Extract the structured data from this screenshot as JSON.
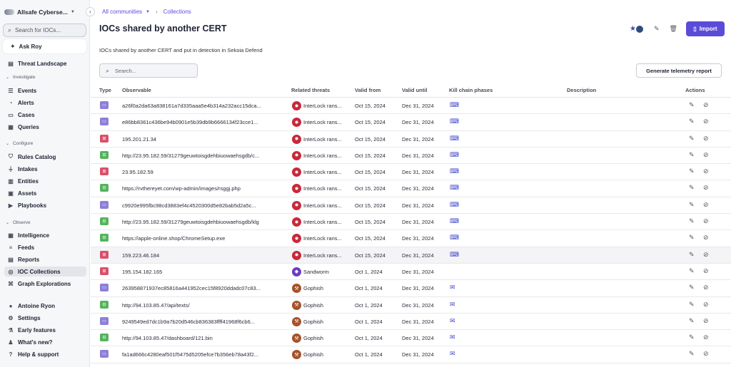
{
  "sidebar": {
    "org_name": "Allsafe Cyberse...",
    "collapse_icon": "chevron-left-icon",
    "search_placeholder": "Search for IOCs...",
    "ask_roy": "Ask Roy",
    "threat_landscape": "Threat Landscape",
    "sections": {
      "investigate": "Investigate",
      "configure": "Configure",
      "observe": "Observe"
    },
    "investigate_items": [
      "Events",
      "Alerts",
      "Cases",
      "Queries"
    ],
    "configure_items": [
      "Rules Catalog",
      "Intakes",
      "Entities",
      "Assets",
      "Playbooks"
    ],
    "observe_items": [
      "Intelligence",
      "Feeds",
      "Reports",
      "IOC Collections",
      "Graph Explorations"
    ],
    "bottom_items": [
      "Antoine Ryon",
      "Settings",
      "Early features",
      "What's new?",
      "Help & support"
    ]
  },
  "breadcrumb": {
    "root": "All communities",
    "current": "Collections"
  },
  "page": {
    "title": "IOCs shared by another CERT",
    "description": "IOCs shared by another CERT and put in detection in Sekoia Defend",
    "import_label": "Import",
    "search_placeholder": "Search...",
    "telemetry_label": "Generate telemetry report"
  },
  "table": {
    "columns": [
      "Type",
      "Observable",
      "Related threats",
      "Valid from",
      "Valid until",
      "Kill chain phases",
      "Description",
      "Actions"
    ],
    "rows": [
      {
        "type": "file",
        "observable": "a26f0a2da63a838161a7d335aaa5e4b314a232acc15dca...",
        "threat": "InterLock rans...",
        "threat_kind": "ransomware",
        "valid_from": "Oct 15, 2024",
        "valid_until": "Dec 31, 2024",
        "kill_chain": "installation"
      },
      {
        "type": "file",
        "observable": "e86bb8361c436be94b0901e5b39db9b6666134f23cce1...",
        "threat": "InterLock rans...",
        "threat_kind": "ransomware",
        "valid_from": "Oct 15, 2024",
        "valid_until": "Dec 31, 2024",
        "kill_chain": "installation"
      },
      {
        "type": "ip",
        "observable": "195.201.21.34",
        "threat": "InterLock rans...",
        "threat_kind": "ransomware",
        "valid_from": "Oct 15, 2024",
        "valid_until": "Dec 31, 2024",
        "kill_chain": "installation"
      },
      {
        "type": "url",
        "observable": "http://23.95.182.59/31279geuwtoisgdehbiuowaehsgdb/c...",
        "threat": "InterLock rans...",
        "threat_kind": "ransomware",
        "valid_from": "Oct 15, 2024",
        "valid_until": "Dec 31, 2024",
        "kill_chain": "installation"
      },
      {
        "type": "ip",
        "observable": "23.95.182.59",
        "threat": "InterLock rans...",
        "threat_kind": "ransomware",
        "valid_from": "Oct 15, 2024",
        "valid_until": "Dec 31, 2024",
        "kill_chain": "installation"
      },
      {
        "type": "url",
        "observable": "https://rvthereyet.com/wp-admin/images/rsggj.php",
        "threat": "InterLock rans...",
        "threat_kind": "ransomware",
        "valid_from": "Oct 15, 2024",
        "valid_until": "Dec 31, 2024",
        "kill_chain": "installation"
      },
      {
        "type": "file",
        "observable": "c9920e995fbc98cd3883ef4c4520300d5e82bab5d2a5c...",
        "threat": "InterLock rans...",
        "threat_kind": "ransomware",
        "valid_from": "Oct 15, 2024",
        "valid_until": "Dec 31, 2024",
        "kill_chain": "installation"
      },
      {
        "type": "url",
        "observable": "http://23.95.182.59/31279geuwtoisgdehbiuowaehsgdb/klg",
        "threat": "InterLock rans...",
        "threat_kind": "ransomware",
        "valid_from": "Oct 15, 2024",
        "valid_until": "Dec 31, 2024",
        "kill_chain": "installation"
      },
      {
        "type": "url",
        "observable": "https://apple-online.shop/ChromeSetup.exe",
        "threat": "InterLock rans...",
        "threat_kind": "ransomware",
        "valid_from": "Oct 15, 2024",
        "valid_until": "Dec 31, 2024",
        "kill_chain": "installation"
      },
      {
        "type": "ip",
        "observable": "159.223.46.184",
        "threat": "InterLock rans...",
        "threat_kind": "ransomware",
        "valid_from": "Oct 15, 2024",
        "valid_until": "Dec 31, 2024",
        "kill_chain": "installation",
        "highlight": true
      },
      {
        "type": "ip",
        "observable": "195.154.182.165",
        "threat": "Sandworm",
        "threat_kind": "actor",
        "valid_from": "Oct 1, 2024",
        "valid_until": "Dec 31, 2024",
        "kill_chain": ""
      },
      {
        "type": "file",
        "observable": "263958871937ec85816a441952cec15f8920ddadc07c83...",
        "threat": "Gophish",
        "threat_kind": "tool",
        "valid_from": "Oct 1, 2024",
        "valid_until": "Dec 31, 2024",
        "kill_chain": "delivery"
      },
      {
        "type": "url",
        "observable": "http://94.103.85.47/api/texts/",
        "threat": "Gophish",
        "threat_kind": "tool",
        "valid_from": "Oct 1, 2024",
        "valid_until": "Dec 31, 2024",
        "kill_chain": "delivery"
      },
      {
        "type": "file",
        "observable": "9249549ed7dc1b9a7b20d546cb836383ffff41968f6cb6...",
        "threat": "Gophish",
        "threat_kind": "tool",
        "valid_from": "Oct 1, 2024",
        "valid_until": "Dec 31, 2024",
        "kill_chain": "delivery"
      },
      {
        "type": "url",
        "observable": "http://94.103.85.47/dashboard/121.bin",
        "threat": "Gophish",
        "threat_kind": "tool",
        "valid_from": "Oct 1, 2024",
        "valid_until": "Dec 31, 2024",
        "kill_chain": "delivery"
      },
      {
        "type": "file",
        "observable": "fa1ad666c4280eaf501f5475d5205efce7b356eb78a43f2...",
        "threat": "Gophish",
        "threat_kind": "tool",
        "valid_from": "Oct 1, 2024",
        "valid_until": "Dec 31, 2024",
        "kill_chain": "delivery"
      }
    ]
  },
  "colors": {
    "accent": "#5b4cd8",
    "file_type": "#8d7fd9",
    "ip_type": "#d9506a",
    "url_type": "#55b35e",
    "ransomware_badge": "#c8283b",
    "actor_badge": "#6a3cc9",
    "tool_badge": "#a5522a"
  }
}
